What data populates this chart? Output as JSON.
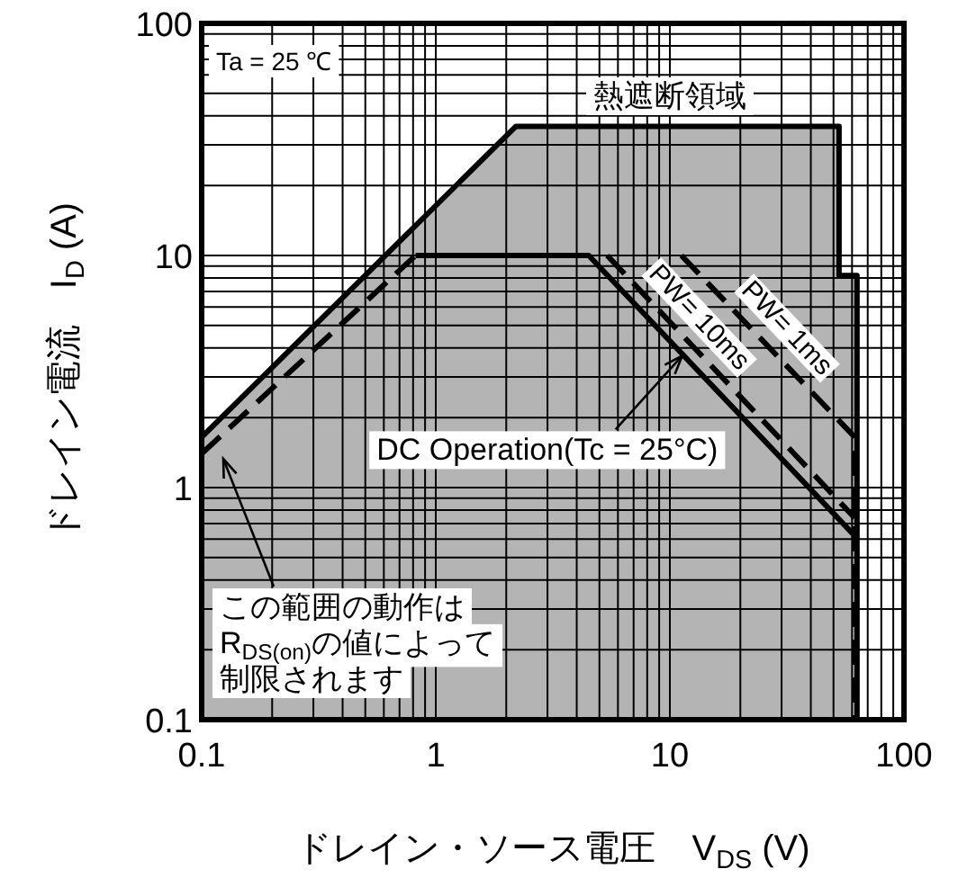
{
  "chart_data": {
    "type": "line",
    "xlabel": "ドレイン・ソース電圧　V$_{DS}$ (V)",
    "ylabel": "ドレイン電流　I$_{D}$ (A)",
    "log": "xy",
    "grid": true,
    "xlim": [
      0.1,
      100
    ],
    "ylim": [
      0.1,
      100
    ],
    "xticks": [
      0.1,
      1,
      10,
      100
    ],
    "yticks": [
      0.1,
      1,
      10,
      100
    ],
    "series": [
      {
        "type": "area",
        "color": "#b4b4b4",
        "x": [
          0.1,
          2.2,
          52.8,
          52.8,
          63,
          63
        ],
        "values": [
          1.65,
          36,
          36,
          8.2,
          8.2,
          0.1
        ]
      },
      {
        "line_style": "dashed",
        "color": "#000000",
        "x": [
          0.1,
          0.82
        ],
        "values": [
          1.4,
          10
        ]
      },
      {
        "line_style": "solid",
        "color": "#000000",
        "x": [
          0.82,
          4.5,
          61.6
        ],
        "values": [
          10,
          10,
          0.62
        ]
      },
      {
        "name": "PW= 10ms",
        "line_style": "dashed",
        "color": "#000000",
        "x": [
          5.4,
          61.6
        ],
        "values": [
          10,
          0.74
        ]
      },
      {
        "name": "PW= 1ms",
        "line_style": "dashed",
        "color": "#000000",
        "x": [
          11.2,
          61.6,
          61.6
        ],
        "values": [
          10,
          1.65,
          0.1
        ]
      }
    ],
    "annotations": [
      "Ta = 25 ℃",
      "熱遮断領域",
      {
        "text": "DC Operation(Tc = 25°C)",
        "x": 11.3,
        "y": 3.7
      },
      "この範囲の動作はR$_{DS(on)}$の値によって制限されます"
    ]
  }
}
